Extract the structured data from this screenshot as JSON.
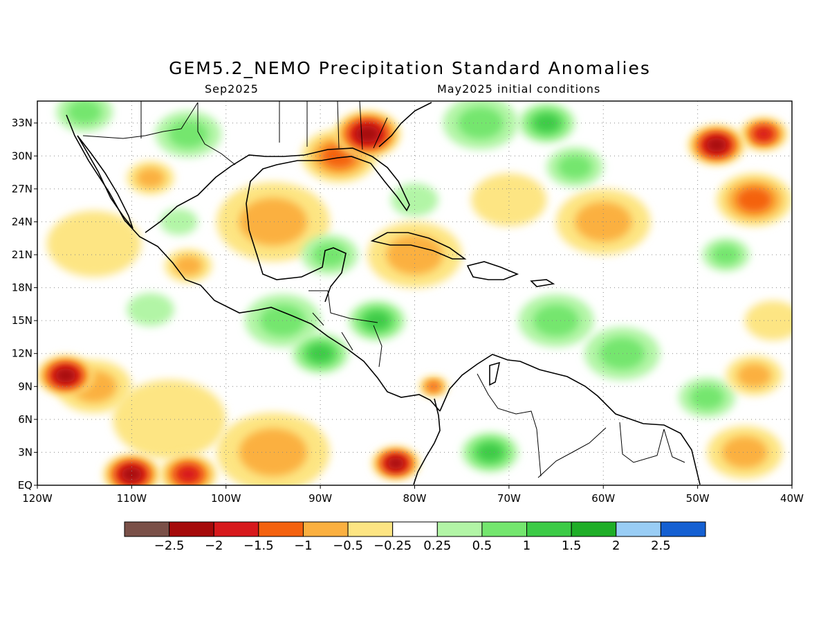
{
  "title": "GEM5.2_NEMO Precipitation Standard Anomalies",
  "subtitle_left": "Sep2025",
  "subtitle_right": "May2025 initial conditions",
  "map": {
    "lon_range": [
      -120,
      -40
    ],
    "lat_range": [
      0,
      35
    ],
    "lon_ticks": [
      {
        "value": -120,
        "label": "120W"
      },
      {
        "value": -110,
        "label": "110W"
      },
      {
        "value": -100,
        "label": "100W"
      },
      {
        "value": -90,
        "label": "90W"
      },
      {
        "value": -80,
        "label": "80W"
      },
      {
        "value": -70,
        "label": "70W"
      },
      {
        "value": -60,
        "label": "60W"
      },
      {
        "value": -50,
        "label": "50W"
      },
      {
        "value": -40,
        "label": "40W"
      }
    ],
    "lat_ticks": [
      {
        "value": 0,
        "label": "EQ"
      },
      {
        "value": 3,
        "label": "3N"
      },
      {
        "value": 6,
        "label": "6N"
      },
      {
        "value": 9,
        "label": "9N"
      },
      {
        "value": 12,
        "label": "12N"
      },
      {
        "value": 15,
        "label": "15N"
      },
      {
        "value": 18,
        "label": "18N"
      },
      {
        "value": 21,
        "label": "21N"
      },
      {
        "value": 24,
        "label": "24N"
      },
      {
        "value": 27,
        "label": "27N"
      },
      {
        "value": 30,
        "label": "30N"
      },
      {
        "value": 33,
        "label": "33N"
      }
    ]
  },
  "colorbar": {
    "colors": [
      "#7a5048",
      "#a50a0a",
      "#d7191c",
      "#f4620f",
      "#fbb040",
      "#fde583",
      "#ffffff",
      "#b2f5a6",
      "#74e66e",
      "#3ccb46",
      "#1fae27",
      "#99cdf5",
      "#1560d2"
    ],
    "labels": [
      "-2.5",
      "-2",
      "-1.5",
      "-1",
      "-0.5",
      "-0.25",
      "0.25",
      "0.5",
      "1",
      "1.5",
      "2",
      "2.5"
    ]
  },
  "anomaly_regions": [
    {
      "lon": -85,
      "lat": 32,
      "value": -2.2,
      "size": 3.5
    },
    {
      "lon": -88,
      "lat": 30,
      "value": -1.3,
      "size": 4
    },
    {
      "lon": -108,
      "lat": 28,
      "value": -1.0,
      "size": 2.5
    },
    {
      "lon": -104,
      "lat": 20,
      "value": -1.0,
      "size": 2.5
    },
    {
      "lon": -95,
      "lat": 24,
      "value": -0.6,
      "size": 6
    },
    {
      "lon": -80,
      "lat": 21,
      "value": -0.6,
      "size": 5
    },
    {
      "lon": -80,
      "lat": 26,
      "value": 0.5,
      "size": 2.5
    },
    {
      "lon": -73,
      "lat": 33,
      "value": 0.8,
      "size": 4
    },
    {
      "lon": -66,
      "lat": 33,
      "value": 1.5,
      "size": 3
    },
    {
      "lon": -63,
      "lat": 29,
      "value": 0.8,
      "size": 3
    },
    {
      "lon": -70,
      "lat": 26,
      "value": -0.5,
      "size": 4
    },
    {
      "lon": -60,
      "lat": 24,
      "value": -0.6,
      "size": 5
    },
    {
      "lon": -48,
      "lat": 31,
      "value": -2.3,
      "size": 3
    },
    {
      "lon": -43,
      "lat": 32,
      "value": -1.8,
      "size": 2.5
    },
    {
      "lon": -44,
      "lat": 26,
      "value": -1.3,
      "size": 4
    },
    {
      "lon": -47,
      "lat": 21,
      "value": 0.8,
      "size": 2.5
    },
    {
      "lon": -104,
      "lat": 32,
      "value": 0.9,
      "size": 3.5
    },
    {
      "lon": -115,
      "lat": 34,
      "value": 0.6,
      "size": 3
    },
    {
      "lon": -114,
      "lat": 22,
      "value": -0.5,
      "size": 5
    },
    {
      "lon": -105,
      "lat": 24,
      "value": 0.5,
      "size": 2
    },
    {
      "lon": -89,
      "lat": 21,
      "value": 0.7,
      "size": 3
    },
    {
      "lon": -108,
      "lat": 16,
      "value": 0.5,
      "size": 2.5
    },
    {
      "lon": -90,
      "lat": 12,
      "value": 1.2,
      "size": 3
    },
    {
      "lon": -84,
      "lat": 15,
      "value": 1.1,
      "size": 3
    },
    {
      "lon": -94,
      "lat": 15,
      "value": 0.6,
      "size": 4
    },
    {
      "lon": -65,
      "lat": 15,
      "value": 0.9,
      "size": 4
    },
    {
      "lon": -72,
      "lat": 3,
      "value": 1.2,
      "size": 3
    },
    {
      "lon": -58,
      "lat": 12,
      "value": 0.7,
      "size": 4
    },
    {
      "lon": -49,
      "lat": 8,
      "value": 0.6,
      "size": 3
    },
    {
      "lon": -42,
      "lat": 15,
      "value": -0.5,
      "size": 3
    },
    {
      "lon": -44,
      "lat": 10,
      "value": -0.6,
      "size": 3
    },
    {
      "lon": -117,
      "lat": 10,
      "value": -2.2,
      "size": 3
    },
    {
      "lon": -114,
      "lat": 9,
      "value": -1.0,
      "size": 4
    },
    {
      "lon": -110,
      "lat": 1,
      "value": -2.1,
      "size": 3
    },
    {
      "lon": -104,
      "lat": 1,
      "value": -2.0,
      "size": 3
    },
    {
      "lon": -82,
      "lat": 2,
      "value": -2.1,
      "size": 2.5
    },
    {
      "lon": -95,
      "lat": 3,
      "value": -0.6,
      "size": 6
    },
    {
      "lon": -106,
      "lat": 6,
      "value": -0.5,
      "size": 6
    },
    {
      "lon": -78,
      "lat": 9,
      "value": -1.1,
      "size": 1.5
    },
    {
      "lon": -45,
      "lat": 3,
      "value": -0.7,
      "size": 4
    }
  ]
}
